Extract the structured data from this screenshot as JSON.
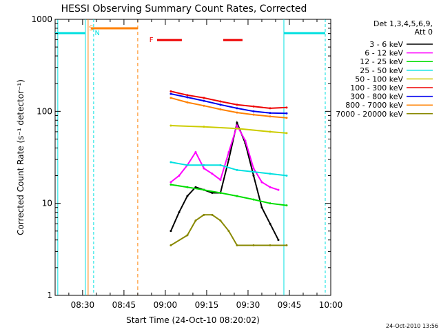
{
  "chart_data": {
    "type": "line",
    "title": "HESSI Observing Summary Count Rates, Corrected",
    "ylabel": "Corrected Count Rate (s⁻¹ detector⁻¹)",
    "xlabel": "Start Time (24-Oct-10 08:20:02)",
    "y_scale": "log",
    "ylim": [
      1,
      1000
    ],
    "xlim": [
      "08:20",
      "10:00"
    ],
    "x_ticks": [
      "08:30",
      "08:45",
      "09:00",
      "09:15",
      "09:30",
      "09:45",
      "10:00"
    ],
    "y_ticks": [
      "1",
      "10",
      "100",
      "1000"
    ],
    "legend_header": [
      "Det 1,3,4,5,6,9,",
      "Att 0"
    ],
    "legend_position": "right",
    "footer_timestamp": "24-Oct-2010 13:56",
    "flags": [
      {
        "label": "S",
        "color": "#ff8000"
      },
      {
        "label": "N",
        "color": "#00e0e0"
      },
      {
        "label": "F",
        "color": "#ee0000"
      }
    ],
    "series": [
      {
        "name": "3 - 6 keV",
        "color": "#000000",
        "x": [
          "09:02",
          "09:05",
          "09:08",
          "09:11",
          "09:14",
          "09:17",
          "09:20",
          "09:23",
          "09:26",
          "09:29",
          "09:32",
          "09:35",
          "09:38",
          "09:41"
        ],
        "y": [
          5,
          8,
          12,
          15,
          14,
          13,
          13,
          30,
          75,
          45,
          20,
          9,
          6,
          4
        ]
      },
      {
        "name": "6 - 12 keV",
        "color": "#ff00ff",
        "x": [
          "09:02",
          "09:05",
          "09:08",
          "09:11",
          "09:14",
          "09:17",
          "09:20",
          "09:23",
          "09:26",
          "09:29",
          "09:32",
          "09:35",
          "09:38",
          "09:41"
        ],
        "y": [
          17,
          20,
          26,
          36,
          24,
          21,
          18,
          36,
          70,
          48,
          24,
          17,
          15,
          14
        ]
      },
      {
        "name": "12 - 25 keV",
        "color": "#00dd00",
        "x": [
          "09:02",
          "09:08",
          "09:14",
          "09:20",
          "09:26",
          "09:32",
          "09:38",
          "09:44"
        ],
        "y": [
          16,
          15,
          14,
          13,
          12,
          11,
          10,
          9.5
        ]
      },
      {
        "name": "25 - 50 keV",
        "color": "#00e0e0",
        "x": [
          "09:02",
          "09:08",
          "09:14",
          "09:20",
          "09:26",
          "09:32",
          "09:38",
          "09:44"
        ],
        "y": [
          28,
          26,
          26,
          26,
          23,
          22,
          21,
          20
        ]
      },
      {
        "name": "50 - 100 keV",
        "color": "#cccc00",
        "x": [
          "09:02",
          "09:14",
          "09:26",
          "09:38",
          "09:44"
        ],
        "y": [
          70,
          68,
          65,
          60,
          58
        ]
      },
      {
        "name": "100 - 300 keV",
        "color": "#ee0000",
        "x": [
          "09:02",
          "09:08",
          "09:14",
          "09:20",
          "09:26",
          "09:32",
          "09:38",
          "09:44"
        ],
        "y": [
          165,
          150,
          140,
          128,
          118,
          113,
          108,
          110
        ]
      },
      {
        "name": "300 - 800 keV",
        "color": "#0000ee",
        "x": [
          "09:02",
          "09:08",
          "09:14",
          "09:20",
          "09:26",
          "09:32",
          "09:38",
          "09:44"
        ],
        "y": [
          155,
          142,
          130,
          118,
          108,
          100,
          96,
          95
        ]
      },
      {
        "name": "800 - 7000 keV",
        "color": "#ff8000",
        "x": [
          "09:02",
          "09:08",
          "09:14",
          "09:20",
          "09:26",
          "09:32",
          "09:38",
          "09:44"
        ],
        "y": [
          140,
          125,
          115,
          105,
          97,
          92,
          88,
          85
        ]
      },
      {
        "name": "7000 - 20000 keV",
        "color": "#888800",
        "x": [
          "09:02",
          "09:08",
          "09:11",
          "09:14",
          "09:17",
          "09:20",
          "09:23",
          "09:26",
          "09:32",
          "09:38",
          "09:44"
        ],
        "y": [
          3.5,
          4.5,
          6.5,
          7.5,
          7.5,
          6.5,
          5,
          3.5,
          3.5,
          3.5,
          3.5
        ]
      }
    ]
  }
}
